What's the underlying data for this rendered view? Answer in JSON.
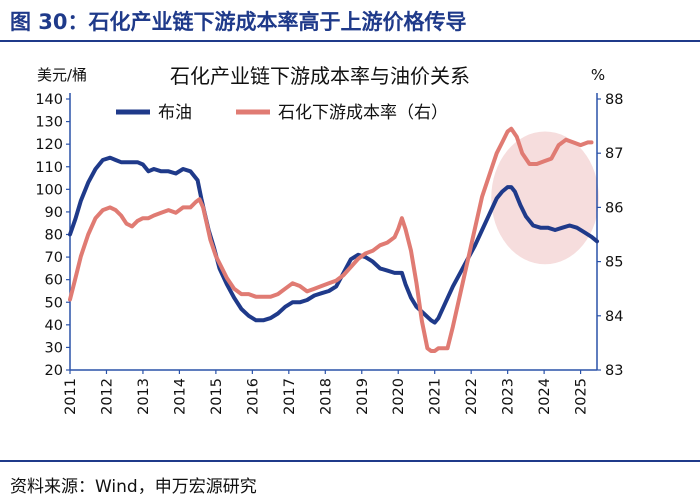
{
  "figure_title": "图 30：石化产业链下游成本率高于上游价格传导",
  "source_note": "资料来源：Wind，申万宏源研究",
  "chart_data": {
    "type": "line",
    "title": "石化产业链下游成本率与油价关系",
    "left_unit": "美元/桶",
    "right_unit": "%",
    "x_ticks": [
      "2011",
      "2012",
      "2013",
      "2014",
      "2015",
      "2016",
      "2017",
      "2018",
      "2019",
      "2020",
      "2021",
      "2022",
      "2023",
      "2024",
      "2025"
    ],
    "x_range": [
      2011.0,
      2025.45
    ],
    "y_left": {
      "range": [
        20,
        140
      ],
      "ticks": [
        20,
        30,
        40,
        50,
        60,
        70,
        80,
        90,
        100,
        110,
        120,
        130,
        140
      ]
    },
    "y_right": {
      "range": [
        83,
        88
      ],
      "ticks": [
        83,
        84,
        85,
        86,
        87,
        88
      ]
    },
    "highlight": {
      "shape": "ellipse",
      "x_range": [
        2022.55,
        2025.5
      ],
      "y_right_range": [
        84.95,
        87.4
      ],
      "color": "#f6dddd"
    },
    "series": [
      {
        "name": "布油",
        "axis": "left",
        "color": "#1f3a8a",
        "x": [
          2011.0,
          2011.15,
          2011.3,
          2011.5,
          2011.7,
          2011.9,
          2012.1,
          2012.25,
          2012.4,
          2012.55,
          2012.7,
          2012.85,
          2013.0,
          2013.15,
          2013.3,
          2013.5,
          2013.7,
          2013.9,
          2014.1,
          2014.3,
          2014.5,
          2014.6,
          2014.7,
          2014.8,
          2014.95,
          2015.1,
          2015.3,
          2015.5,
          2015.7,
          2015.9,
          2016.1,
          2016.3,
          2016.5,
          2016.7,
          2016.9,
          2017.1,
          2017.3,
          2017.5,
          2017.7,
          2017.9,
          2018.1,
          2018.3,
          2018.5,
          2018.7,
          2018.9,
          2019.1,
          2019.3,
          2019.5,
          2019.7,
          2019.9,
          2020.1,
          2020.2,
          2020.35,
          2020.5,
          2020.7,
          2020.9,
          2021.0,
          2021.1,
          2021.3,
          2021.5,
          2021.7,
          2021.9,
          2022.1,
          2022.3,
          2022.5,
          2022.7,
          2022.85,
          2023.0,
          2023.1,
          2023.2,
          2023.35,
          2023.5,
          2023.7,
          2023.9,
          2024.1,
          2024.3,
          2024.5,
          2024.7,
          2024.9,
          2025.1,
          2025.3,
          2025.45
        ],
        "values": [
          80,
          87,
          95,
          103,
          109,
          113,
          114,
          113,
          112,
          112,
          112,
          112,
          111,
          108,
          109,
          108,
          108,
          107,
          109,
          108,
          104,
          96,
          89,
          82,
          74,
          65,
          58,
          52,
          47,
          44,
          42,
          42,
          43,
          45,
          48,
          50,
          50,
          51,
          53,
          54,
          55,
          57,
          63,
          69,
          71,
          70,
          68,
          65,
          64,
          63,
          63,
          58,
          52,
          48,
          45,
          42,
          41,
          43,
          50,
          57,
          63,
          69,
          75,
          82,
          89,
          96,
          99,
          101,
          101,
          99,
          93,
          88,
          84,
          83,
          83,
          82,
          83,
          84,
          83,
          81,
          79,
          77
        ]
      },
      {
        "name": "石化下游成本率（右）",
        "axis": "right",
        "color": "#e07b73",
        "x": [
          2011.0,
          2011.15,
          2011.3,
          2011.5,
          2011.7,
          2011.9,
          2012.1,
          2012.25,
          2012.4,
          2012.55,
          2012.7,
          2012.85,
          2013.0,
          2013.15,
          2013.3,
          2013.5,
          2013.7,
          2013.9,
          2014.1,
          2014.3,
          2014.45,
          2014.55,
          2014.65,
          2014.75,
          2014.85,
          2015.0,
          2015.15,
          2015.3,
          2015.5,
          2015.7,
          2015.9,
          2016.1,
          2016.3,
          2016.5,
          2016.7,
          2016.9,
          2017.1,
          2017.3,
          2017.5,
          2017.7,
          2017.9,
          2018.1,
          2018.3,
          2018.5,
          2018.7,
          2018.9,
          2019.1,
          2019.3,
          2019.5,
          2019.7,
          2019.9,
          2020.0,
          2020.1,
          2020.2,
          2020.35,
          2020.5,
          2020.65,
          2020.8,
          2020.9,
          2021.0,
          2021.1,
          2021.2,
          2021.35,
          2021.5,
          2021.7,
          2021.9,
          2022.1,
          2022.3,
          2022.5,
          2022.7,
          2022.85,
          2023.0,
          2023.1,
          2023.25,
          2023.4,
          2023.6,
          2023.8,
          2024.0,
          2024.2,
          2024.4,
          2024.6,
          2024.8,
          2025.0,
          2025.2,
          2025.3
        ],
        "values": [
          84.3,
          84.7,
          85.1,
          85.5,
          85.8,
          85.95,
          86.0,
          85.95,
          85.85,
          85.7,
          85.65,
          85.75,
          85.8,
          85.8,
          85.85,
          85.9,
          85.95,
          85.9,
          86.0,
          86.0,
          86.1,
          86.15,
          86.0,
          85.7,
          85.4,
          85.1,
          84.9,
          84.7,
          84.5,
          84.4,
          84.4,
          84.35,
          84.35,
          84.35,
          84.4,
          84.5,
          84.6,
          84.55,
          84.45,
          84.5,
          84.55,
          84.6,
          84.65,
          84.75,
          84.9,
          85.05,
          85.15,
          85.2,
          85.3,
          85.35,
          85.45,
          85.6,
          85.8,
          85.6,
          85.2,
          84.6,
          83.9,
          83.4,
          83.35,
          83.35,
          83.4,
          83.4,
          83.4,
          83.8,
          84.4,
          85.0,
          85.6,
          86.2,
          86.6,
          87.0,
          87.2,
          87.4,
          87.45,
          87.3,
          87.0,
          86.8,
          86.8,
          86.85,
          86.9,
          87.15,
          87.25,
          87.2,
          87.15,
          87.2,
          87.2
        ]
      }
    ]
  }
}
